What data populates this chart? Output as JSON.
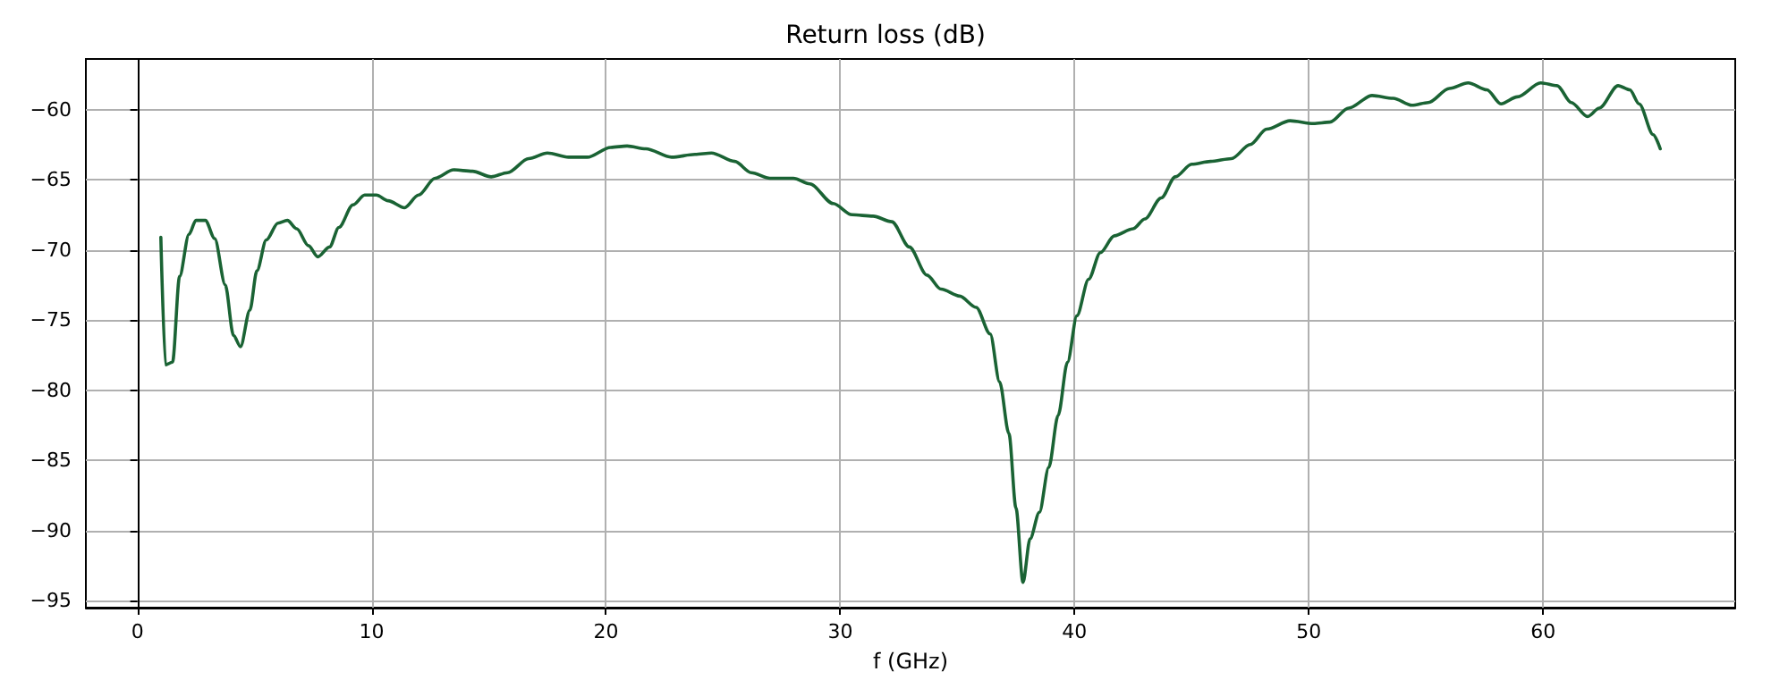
{
  "chart_data": {
    "type": "line",
    "title": "Return loss (dB)",
    "xlabel": "f (GHz)",
    "xlim": [
      -2.2,
      68.2
    ],
    "xticks": [
      0,
      10,
      20,
      30,
      40,
      50,
      60
    ],
    "ylim": [
      -95.5,
      -56.4
    ],
    "yticks": [
      -95,
      -90,
      -85,
      -80,
      -75,
      -70,
      -65,
      -60
    ],
    "grid": true,
    "marker": "none",
    "line_style": "solid",
    "series": [
      {
        "color": "#1a6334",
        "x": [
          1,
          1.2,
          1.5,
          1.8,
          2.2,
          2.5,
          2.9,
          3.3,
          3.75,
          4.1,
          4.4,
          4.8,
          5.1,
          5.5,
          6.0,
          6.4,
          6.8,
          7.3,
          7.7,
          8.2,
          8.6,
          9.2,
          9.7,
          10.2,
          10.7,
          11.4,
          12.0,
          12.7,
          13.5,
          14.3,
          15.1,
          15.8,
          16.7,
          17.5,
          18.4,
          19.2,
          20.2,
          20.9,
          21.7,
          22.8,
          23.8,
          24.5,
          25.5,
          26.2,
          27.0,
          28.0,
          28.7,
          29.7,
          30.5,
          31.4,
          32.2,
          32.95,
          33.7,
          34.3,
          35.1,
          35.8,
          36.4,
          36.8,
          37.2,
          37.5,
          37.8,
          38.1,
          38.5,
          38.9,
          39.3,
          39.7,
          40.1,
          40.6,
          41.1,
          41.7,
          42.5,
          43.0,
          43.7,
          44.3,
          45.0,
          45.8,
          46.7,
          47.5,
          48.2,
          49.2,
          50.2,
          50.9,
          51.7,
          52.7,
          53.6,
          54.4,
          55.1,
          56.0,
          56.8,
          57.6,
          58.2,
          58.9,
          59.9,
          60.6,
          61.2,
          61.9,
          62.4,
          63.2,
          63.7,
          64.1,
          64.7,
          65
        ],
        "values": [
          -69.1,
          -78.2,
          -78.0,
          -71.9,
          -68.9,
          -67.9,
          -67.9,
          -69.2,
          -72.5,
          -76.1,
          -76.9,
          -74.3,
          -71.5,
          -69.3,
          -68.1,
          -67.9,
          -68.5,
          -69.7,
          -70.5,
          -69.8,
          -68.4,
          -66.8,
          -66.1,
          -66.1,
          -66.5,
          -67.0,
          -66.1,
          -64.9,
          -64.3,
          -64.4,
          -64.8,
          -64.5,
          -63.5,
          -63.1,
          -63.4,
          -63.4,
          -62.7,
          -62.6,
          -62.8,
          -63.4,
          -63.2,
          -63.1,
          -63.7,
          -64.5,
          -64.9,
          -64.9,
          -65.3,
          -66.7,
          -67.5,
          -67.6,
          -68.0,
          -69.8,
          -71.8,
          -72.8,
          -73.3,
          -74.1,
          -76.0,
          -79.4,
          -83.1,
          -88.4,
          -93.7,
          -90.6,
          -88.7,
          -85.5,
          -81.8,
          -78.0,
          -74.7,
          -72.1,
          -70.2,
          -69.0,
          -68.5,
          -67.8,
          -66.3,
          -64.8,
          -63.9,
          -63.7,
          -63.5,
          -62.5,
          -61.4,
          -60.8,
          -61.0,
          -60.9,
          -59.9,
          -59.0,
          -59.2,
          -59.7,
          -59.5,
          -58.5,
          -58.1,
          -58.6,
          -59.6,
          -59.1,
          -58.1,
          -58.3,
          -59.5,
          -60.5,
          -59.9,
          -58.3,
          -58.6,
          -59.6,
          -61.8,
          -62.8
        ]
      }
    ]
  }
}
